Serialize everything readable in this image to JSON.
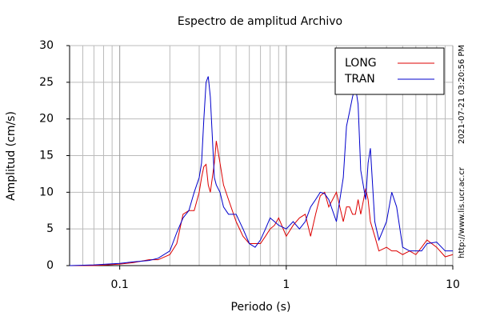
{
  "chart_data": {
    "type": "line",
    "title": "Espectro de amplitud Archivo",
    "xlabel": "Periodo (s)",
    "ylabel": "Amplitud (cm/s)",
    "annotations": [
      "2021-07-21 03:20:56 PM",
      "http://www.lis.ucr.ac.cr"
    ],
    "xscale": "log",
    "grid": true,
    "legend": "upper right",
    "xlim": [
      0.05,
      10
    ],
    "ylim": [
      0,
      30
    ],
    "xticks": [
      0.1,
      1,
      10
    ],
    "xminorticks": [
      0.06,
      0.07,
      0.08,
      0.09,
      0.2,
      0.3,
      0.4,
      0.5,
      0.6,
      0.7,
      0.8,
      0.9,
      2,
      3,
      4,
      5,
      6,
      7,
      8,
      9
    ],
    "yticks": [
      0,
      5,
      10,
      15,
      20,
      25,
      30
    ],
    "x": [
      0.05,
      0.07,
      0.1,
      0.12,
      0.15,
      0.17,
      0.2,
      0.22,
      0.24,
      0.26,
      0.28,
      0.3,
      0.31,
      0.32,
      0.33,
      0.34,
      0.35,
      0.37,
      0.38,
      0.4,
      0.42,
      0.45,
      0.5,
      0.55,
      0.6,
      0.65,
      0.7,
      0.75,
      0.8,
      0.85,
      0.9,
      1.0,
      1.1,
      1.2,
      1.3,
      1.4,
      1.5,
      1.6,
      1.7,
      1.8,
      2.0,
      2.2,
      2.3,
      2.4,
      2.5,
      2.6,
      2.7,
      2.8,
      3.0,
      3.1,
      3.2,
      3.4,
      3.6,
      4.0,
      4.3,
      4.6,
      5.0,
      5.5,
      6.0,
      6.5,
      7.0,
      8.0,
      9.0,
      10
    ],
    "series": [
      {
        "name": "LONG",
        "color": "#dd0000",
        "values": [
          0,
          0,
          0.2,
          0.4,
          0.8,
          0.8,
          1.5,
          3,
          7,
          7.5,
          7.5,
          10,
          12,
          13.5,
          13.8,
          11,
          10,
          14,
          17,
          14,
          11,
          9,
          6,
          4,
          3,
          3,
          3,
          4,
          5,
          5.5,
          6.5,
          4,
          5.5,
          6.5,
          7,
          4,
          7,
          9.5,
          10,
          8,
          10,
          6,
          8,
          8,
          7,
          7,
          9,
          7,
          10.5,
          9,
          6,
          4,
          2,
          2.5,
          2,
          2,
          1.5,
          2,
          1.5,
          2.5,
          3.5,
          2.5,
          1.2,
          1.5
        ]
      },
      {
        "name": "TRAN",
        "color": "#0000cc",
        "values": [
          0,
          0.1,
          0.3,
          0.5,
          0.7,
          1.0,
          2.0,
          4.5,
          6.5,
          7.5,
          10,
          12,
          14,
          20,
          25,
          25.8,
          23,
          12,
          11,
          10,
          8,
          7,
          7,
          5,
          3,
          2.5,
          3.5,
          5,
          6.5,
          6,
          5.5,
          5,
          6,
          5,
          6,
          8,
          9,
          10,
          9.8,
          9,
          6,
          12,
          19,
          21,
          23,
          24.5,
          22,
          13,
          9,
          14,
          16,
          6,
          3.5,
          6,
          10,
          8,
          2.5,
          2,
          2,
          2,
          3,
          3.2,
          2,
          2
        ]
      }
    ]
  }
}
